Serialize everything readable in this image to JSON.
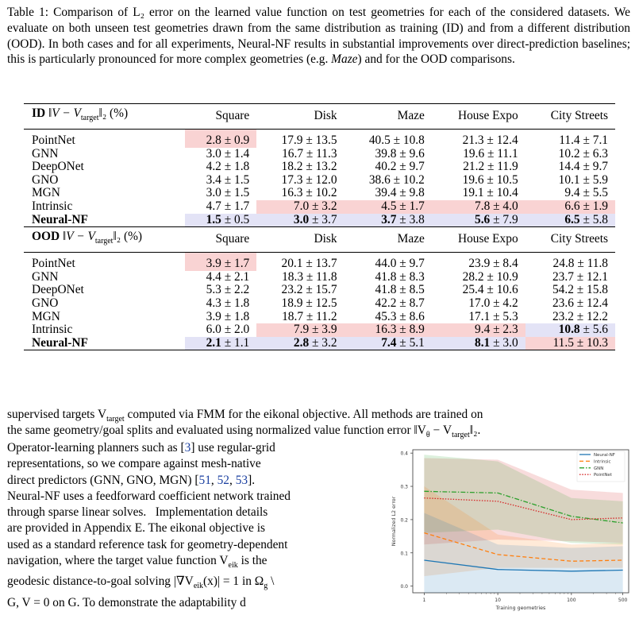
{
  "caption": {
    "label": "Table 1:",
    "text": "Comparison of L₂ error on the learned value function on test geometries for each of the considered datasets. We evaluate on both unseen test geometries drawn from the same distribution as training (ID) and from a different distribution (OOD). In both cases and for all experiments, Neural-NF results in substantial improvements over direct-prediction baselines; this is particularly pronounced for more complex geometries (e.g.",
    "em": "Maze",
    "tail": ") and for the OOD comparisons."
  },
  "table": {
    "columns": [
      "Square",
      "Disk",
      "Maze",
      "House Expo",
      "City Streets"
    ],
    "sections": [
      {
        "tag": "ID",
        "metric": "‖V − V",
        "metric_sub": "target",
        "metric_tail": "‖₂ (%)",
        "rows": [
          {
            "name": "PointNet",
            "cells": [
              "2.8 ± 0.9",
              "17.9 ± 13.5",
              "40.5 ± 10.8",
              "21.3 ± 12.4",
              "11.4 ± 7.1"
            ]
          },
          {
            "name": "GNN",
            "cells": [
              "3.0 ± 1.4",
              "16.7 ± 11.3",
              "39.8 ± 9.6",
              "19.6 ± 11.1",
              "10.2 ± 6.3"
            ]
          },
          {
            "name": "DeepONet",
            "cells": [
              "4.2 ± 1.8",
              "18.2 ± 13.2",
              "40.2 ± 9.7",
              "21.2 ± 11.9",
              "14.4 ± 9.7"
            ]
          },
          {
            "name": "GNO",
            "cells": [
              "3.4 ± 1.5",
              "17.3 ± 12.0",
              "38.6 ± 10.2",
              "19.6 ± 10.5",
              "10.1 ± 5.9"
            ]
          },
          {
            "name": "MGN",
            "cells": [
              "3.0 ± 1.5",
              "16.3 ± 10.2",
              "39.4 ± 9.8",
              "19.1 ± 10.4",
              "9.4 ± 5.5"
            ]
          },
          {
            "name": "Intrinsic",
            "cells": [
              "4.7 ± 1.7",
              "7.0 ± 3.2",
              "4.5 ± 1.7",
              "7.8 ± 4.0",
              "6.6 ± 1.9"
            ]
          },
          {
            "name": "Neural-NF",
            "cells": [
              "1.5 ± 0.5",
              "3.0 ± 3.7",
              "3.7 ± 3.8",
              "5.6 ± 7.9",
              "6.5 ± 5.8"
            ]
          }
        ]
      },
      {
        "tag": "OOD",
        "metric": "‖V − V",
        "metric_sub": "target",
        "metric_tail": "‖₂ (%)",
        "rows": [
          {
            "name": "PointNet",
            "cells": [
              "3.9 ± 1.7",
              "20.1 ± 13.7",
              "44.0 ± 9.7",
              "23.9 ± 8.4",
              "24.8 ± 11.8"
            ]
          },
          {
            "name": "GNN",
            "cells": [
              "4.4 ± 2.1",
              "18.3 ± 11.8",
              "41.8 ± 8.3",
              "28.2 ± 10.9",
              "23.7 ± 12.1"
            ]
          },
          {
            "name": "DeepONet",
            "cells": [
              "5.3 ± 2.2",
              "23.2 ± 15.7",
              "41.8 ± 8.5",
              "25.4 ± 10.6",
              "54.2 ± 15.8"
            ]
          },
          {
            "name": "GNO",
            "cells": [
              "4.3 ± 1.8",
              "18.9 ± 12.5",
              "42.2 ± 8.7",
              "17.0 ± 4.2",
              "23.6 ± 12.4"
            ]
          },
          {
            "name": "MGN",
            "cells": [
              "3.9 ± 1.8",
              "18.7 ± 11.2",
              "45.3 ± 8.6",
              "17.1 ± 5.3",
              "23.2 ± 12.2"
            ]
          },
          {
            "name": "Intrinsic",
            "cells": [
              "6.0 ± 2.0",
              "7.9 ± 3.9",
              "16.3 ± 8.9",
              "9.4 ± 2.3",
              "10.8 ± 5.6"
            ]
          },
          {
            "name": "Neural-NF",
            "cells": [
              "2.1 ± 1.1",
              "2.8 ± 3.2",
              "7.4 ± 5.1",
              "8.1 ± 3.0",
              "11.5 ± 10.3"
            ]
          }
        ]
      }
    ]
  },
  "body": {
    "full_line_1": "supervised targets V",
    "full_line_1_sub": "target",
    "full_line_1_tail": " computed via FMM for the eikonal objective. All methods are trained on",
    "full_line_2": "the same geometry/goal splits and evaluated using normalized value function error ‖V",
    "full_line_2_sub": "θ",
    "full_line_2_mid": " − V",
    "full_line_2_sub2": "target",
    "full_line_2_tail": "‖₂.",
    "wrap_1_pre": "Operator-learning planners such as [",
    "wrap_1_ref": "3",
    "wrap_1_post": "] use regular-grid",
    "wrap_2": "representations, so we compare against mesh-native",
    "wrap_3_pre": "direct predictors (GNN, GNO, MGN) [",
    "wrap_3_r1": "51",
    "wrap_3_r2": "52",
    "wrap_3_r3": "53",
    "wrap_3_post": "].",
    "wrap_4": "Neural-NF uses a feedforward coefficient network trained",
    "wrap_5": "through sparse linear solves.   Implementation details",
    "wrap_6": "are provided in Appendix E. The eikonal objective is",
    "wrap_7": "used as a standard reference task for geometry-dependent",
    "wrap_8_pre": "navigation, where the target value function V",
    "wrap_8_sub": "eik",
    "wrap_8_post": " is the",
    "wrap_9": "geodesic distance-to-goal solving |∇V",
    "wrap_9_sub": "eik",
    "wrap_9_tail": "(x)| = 1 in Ω",
    "wrap_9_sub2": "g",
    "wrap_9_end": " \\",
    "wrap_10": "G, V = 0 on G. To demonstrate the adaptability d"
  },
  "chart_data": {
    "type": "line",
    "x": [
      1,
      10,
      100,
      500
    ],
    "xlabel": "Training geometries",
    "ylabel": "Normalized L2 error",
    "xscale": "log",
    "xticks": [
      "1",
      "10",
      "100",
      "500"
    ],
    "yticks": [
      "0.0",
      "0.1",
      "0.2",
      "0.3",
      "0.4"
    ],
    "ylim": [
      -0.02,
      0.41
    ],
    "legend_placement": "top-right",
    "series": [
      {
        "name": "Neural-NF",
        "color": "#1f77b4",
        "dash": "solid",
        "values": [
          0.078,
          0.05,
          0.045,
          0.048
        ],
        "lower": [
          -0.02,
          -0.02,
          -0.02,
          -0.02
        ],
        "upper": [
          0.22,
          0.125,
          0.115,
          0.12
        ]
      },
      {
        "name": "Intrinsic",
        "color": "#ff7f0e",
        "dash": "dashed",
        "values": [
          0.16,
          0.095,
          0.075,
          0.078
        ],
        "lower": [
          0.03,
          0.055,
          0.055,
          0.055
        ],
        "upper": [
          0.3,
          0.155,
          0.125,
          0.13
        ]
      },
      {
        "name": "GNN",
        "color": "#2ca02c",
        "dash": "dashdot",
        "values": [
          0.285,
          0.28,
          0.21,
          0.19
        ],
        "lower": [
          0.16,
          0.17,
          0.13,
          0.125
        ],
        "upper": [
          0.395,
          0.375,
          0.265,
          0.255
        ]
      },
      {
        "name": "PointNet",
        "color": "#d62728",
        "dash": "dotted",
        "values": [
          0.265,
          0.255,
          0.2,
          0.205
        ],
        "lower": [
          0.125,
          0.14,
          0.135,
          0.13
        ],
        "upper": [
          0.385,
          0.38,
          0.29,
          0.28
        ]
      }
    ]
  }
}
